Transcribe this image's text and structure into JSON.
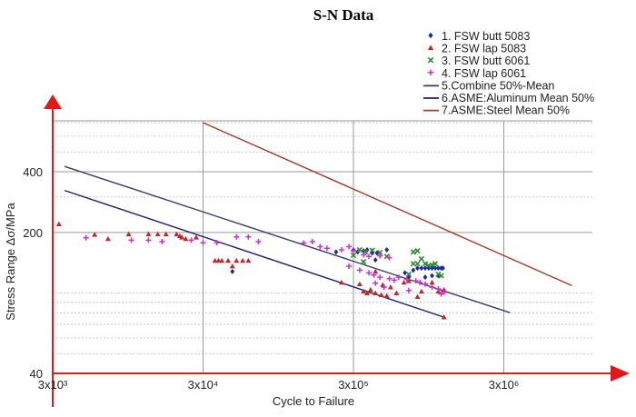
{
  "chart_data": {
    "type": "scatter",
    "title": "S-N Data",
    "xlabel": "Cycle to Failure",
    "ylabel": "Stress Range Δσ/MPa",
    "x_scale": "log",
    "y_scale": "log",
    "xlim": [
      3000,
      10000000
    ],
    "ylim": [
      40,
      1000
    ],
    "x_ticks": [
      {
        "value": 3000,
        "label": "3x10³"
      },
      {
        "value": 30000,
        "label": "3x10⁴"
      },
      {
        "value": 300000,
        "label": "3x10⁵"
      },
      {
        "value": 3000000,
        "label": "3x10⁶"
      }
    ],
    "y_ticks": [
      {
        "value": 40,
        "label": "40"
      },
      {
        "value": 200,
        "label": "200"
      },
      {
        "value": 400,
        "label": "400"
      }
    ],
    "grid": true,
    "legend_position": "top-right",
    "series": [
      {
        "name": "1. FSW butt 5083",
        "kind": "points",
        "marker": "diamond",
        "color": "#1f2a9a",
        "points": [
          [
            47000,
            128
          ],
          [
            230000,
            160
          ],
          [
            300000,
            164
          ],
          [
            320000,
            160
          ],
          [
            350000,
            162
          ],
          [
            370000,
            164
          ],
          [
            400000,
            158
          ],
          [
            430000,
            158
          ],
          [
            500000,
            164
          ],
          [
            420000,
            146
          ],
          [
            660000,
            126
          ],
          [
            750000,
            130
          ],
          [
            800000,
            133
          ],
          [
            850000,
            133
          ],
          [
            900000,
            133
          ],
          [
            950000,
            133
          ],
          [
            1000000,
            133
          ],
          [
            1050000,
            133
          ],
          [
            1100000,
            133
          ],
          [
            1150000,
            133
          ],
          [
            1180000,
            133
          ],
          [
            700000,
            120
          ],
          [
            900000,
            120
          ],
          [
            1000000,
            122
          ],
          [
            1100000,
            122
          ]
        ]
      },
      {
        "name": "2. FSW lap 5083",
        "kind": "points",
        "marker": "triangle",
        "color": "#c0282c",
        "points": [
          [
            3300,
            220
          ],
          [
            5700,
            195
          ],
          [
            7000,
            186
          ],
          [
            9600,
            196
          ],
          [
            13000,
            196
          ],
          [
            15000,
            196
          ],
          [
            17000,
            196
          ],
          [
            20000,
            196
          ],
          [
            21000,
            192
          ],
          [
            21700,
            189
          ],
          [
            23000,
            186
          ],
          [
            27000,
            189
          ],
          [
            36000,
            145
          ],
          [
            38000,
            145
          ],
          [
            40000,
            145
          ],
          [
            44000,
            145
          ],
          [
            47000,
            136
          ],
          [
            50000,
            145
          ],
          [
            55000,
            145
          ],
          [
            60000,
            145
          ],
          [
            250000,
            113
          ],
          [
            330000,
            111
          ],
          [
            350000,
            102
          ],
          [
            370000,
            100
          ],
          [
            390000,
            104
          ],
          [
            420000,
            100
          ],
          [
            460000,
            98
          ],
          [
            500000,
            97
          ],
          [
            530000,
            107
          ],
          [
            580000,
            100
          ],
          [
            650000,
            113
          ],
          [
            700000,
            115
          ],
          [
            800000,
            96
          ],
          [
            850000,
            102
          ],
          [
            1000000,
            113
          ],
          [
            1100000,
            102
          ],
          [
            1200000,
            104
          ],
          [
            1200000,
            76
          ],
          [
            420000,
            128
          ],
          [
            470000,
            110
          ]
        ]
      },
      {
        "name": "3. FSW butt 6061",
        "kind": "points",
        "marker": "x",
        "color": "#2e8b2e",
        "points": [
          [
            330000,
            164
          ],
          [
            360000,
            160
          ],
          [
            400000,
            163
          ],
          [
            450000,
            159
          ],
          [
            300000,
            154
          ],
          [
            350000,
            143
          ],
          [
            500000,
            152
          ],
          [
            750000,
            160
          ],
          [
            800000,
            162
          ],
          [
            850000,
            148
          ],
          [
            900000,
            140
          ],
          [
            950000,
            137
          ],
          [
            1000000,
            138
          ],
          [
            1050000,
            140
          ],
          [
            750000,
            140
          ],
          [
            800000,
            140
          ],
          [
            700000,
            124
          ],
          [
            1100000,
            124
          ],
          [
            1150000,
            122
          ]
        ]
      },
      {
        "name": "4. FSW lap 6061",
        "kind": "points",
        "marker": "plus",
        "color": "#cc33cc",
        "points": [
          [
            5000,
            188
          ],
          [
            10000,
            183
          ],
          [
            13000,
            183
          ],
          [
            16000,
            180
          ],
          [
            25000,
            183
          ],
          [
            30000,
            178
          ],
          [
            37000,
            178
          ],
          [
            50000,
            190
          ],
          [
            60000,
            190
          ],
          [
            70000,
            180
          ],
          [
            140000,
            177
          ],
          [
            160000,
            180
          ],
          [
            180000,
            170
          ],
          [
            200000,
            167
          ],
          [
            250000,
            164
          ],
          [
            280000,
            170
          ],
          [
            300000,
            162
          ],
          [
            350000,
            155
          ],
          [
            380000,
            152
          ],
          [
            450000,
            153
          ],
          [
            520000,
            150
          ],
          [
            280000,
            136
          ],
          [
            330000,
            130
          ],
          [
            380000,
            126
          ],
          [
            410000,
            123
          ],
          [
            450000,
            120
          ],
          [
            520000,
            118
          ],
          [
            600000,
            120
          ],
          [
            680000,
            117
          ],
          [
            780000,
            115
          ],
          [
            830000,
            113
          ],
          [
            900000,
            111
          ],
          [
            1000000,
            107
          ],
          [
            1100000,
            105
          ],
          [
            1150000,
            99
          ],
          [
            1200000,
            101
          ],
          [
            420000,
            112
          ],
          [
            480000,
            107
          ],
          [
            700000,
            103
          ],
          [
            560000,
            116
          ]
        ]
      },
      {
        "name": "5.Combine 50%-Mean",
        "kind": "line",
        "color": "#3a3a6a",
        "points": [
          [
            3600,
            425
          ],
          [
            3300000,
            80
          ]
        ]
      },
      {
        "name": "6.ASME:Aluminum Mean 50%",
        "kind": "line",
        "color": "#1b1d6e",
        "points": [
          [
            3600,
            323
          ],
          [
            1200000,
            76
          ]
        ]
      },
      {
        "name": "7.ASME:Steel Mean 50%",
        "kind": "line",
        "color": "#a33a2a",
        "points": [
          [
            30000,
            700
          ],
          [
            8500000,
            109
          ]
        ]
      }
    ]
  }
}
